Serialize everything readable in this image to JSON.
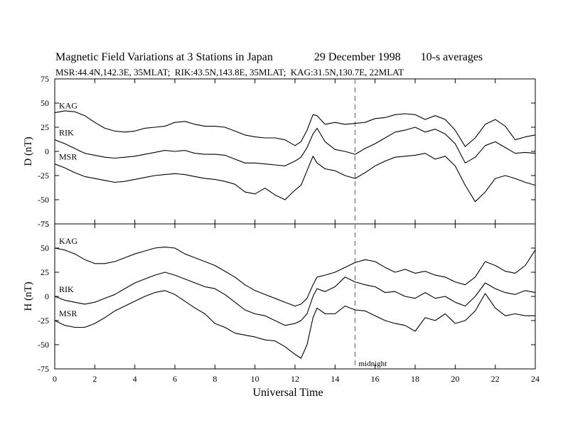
{
  "header": {
    "title": "Magnetic Field Variations at 3 Stations in Japan",
    "date": "29 December 1998",
    "averaging": "10-s averages",
    "stations_line": "MSR:44.4N,142.3E, 35MLAT;  RIK:43.5N,143.8E, 35MLAT;  KAG:31.5N,130.7E, 22MLAT"
  },
  "chart_data": [
    {
      "type": "line",
      "panel": "D",
      "ylabel": "D (nT)",
      "xlim": [
        0,
        24
      ],
      "ylim": [
        -75,
        75
      ],
      "yticks": [
        75,
        50,
        25,
        0,
        -25,
        -50,
        -75
      ],
      "series": [
        {
          "name": "KAG",
          "x": [
            0,
            0.5,
            1,
            1.5,
            2,
            2.5,
            3,
            3.5,
            4,
            4.5,
            5,
            5.5,
            6,
            6.5,
            7,
            7.5,
            8,
            8.5,
            9,
            9.5,
            10,
            10.5,
            11,
            11.5,
            12,
            12.3,
            12.6,
            12.9,
            13.1,
            13.5,
            14,
            14.5,
            15,
            15.5,
            16,
            16.5,
            17,
            17.5,
            18,
            18.5,
            19,
            19.5,
            20,
            20.5,
            21,
            21.5,
            22,
            22.5,
            23,
            23.5,
            24
          ],
          "y": [
            40,
            42,
            41,
            37,
            30,
            24,
            21,
            20,
            21,
            24,
            25,
            26,
            30,
            31,
            28,
            26,
            26,
            25,
            21,
            17,
            15,
            14,
            14,
            12,
            6,
            10,
            22,
            38,
            37,
            28,
            30,
            28,
            29,
            30,
            34,
            35,
            38,
            39,
            38,
            33,
            37,
            33,
            22,
            5,
            14,
            28,
            33,
            26,
            12,
            15,
            17
          ]
        },
        {
          "name": "RIK",
          "x": [
            0,
            0.5,
            1,
            1.5,
            2,
            2.5,
            3,
            3.5,
            4,
            4.5,
            5,
            5.5,
            6,
            6.5,
            7,
            7.5,
            8,
            8.5,
            9,
            9.5,
            10,
            10.5,
            11,
            11.5,
            12,
            12.3,
            12.6,
            12.9,
            13.1,
            13.5,
            14,
            14.5,
            15,
            15.5,
            16,
            16.5,
            17,
            17.5,
            18,
            18.5,
            19,
            19.5,
            20,
            20.5,
            21,
            21.5,
            22,
            22.5,
            23,
            23.5,
            24
          ],
          "y": [
            12,
            8,
            3,
            -2,
            -4,
            -6,
            -7,
            -6,
            -5,
            -3,
            -1,
            1,
            0,
            1,
            -2,
            -3,
            -3,
            -4,
            -8,
            -12,
            -12,
            -13,
            -14,
            -15,
            -10,
            -6,
            4,
            18,
            24,
            10,
            2,
            0,
            -3,
            3,
            8,
            14,
            20,
            22,
            25,
            20,
            23,
            18,
            8,
            -12,
            -6,
            6,
            10,
            4,
            -2,
            -1,
            -2
          ]
        },
        {
          "name": "MSR",
          "x": [
            0,
            0.5,
            1,
            1.5,
            2,
            2.5,
            3,
            3.5,
            4,
            4.5,
            5,
            5.5,
            6,
            6.5,
            7,
            7.5,
            8,
            8.5,
            9,
            9.5,
            10,
            10.5,
            11,
            11.5,
            12,
            12.3,
            12.6,
            12.9,
            13.1,
            13.5,
            14,
            14.5,
            15,
            15.5,
            16,
            16.5,
            17,
            17.5,
            18,
            18.5,
            19,
            19.5,
            20,
            20.5,
            21,
            21.5,
            22,
            22.5,
            23,
            23.5,
            24
          ],
          "y": [
            -13,
            -17,
            -22,
            -26,
            -28,
            -30,
            -32,
            -31,
            -29,
            -27,
            -25,
            -24,
            -23,
            -24,
            -26,
            -28,
            -29,
            -31,
            -34,
            -42,
            -44,
            -38,
            -45,
            -50,
            -40,
            -35,
            -20,
            -5,
            -12,
            -18,
            -20,
            -25,
            -28,
            -22,
            -15,
            -10,
            -6,
            -5,
            -4,
            -2,
            -8,
            -5,
            -15,
            -35,
            -52,
            -42,
            -28,
            -25,
            -28,
            -32,
            -35
          ]
        }
      ]
    },
    {
      "type": "line",
      "panel": "H",
      "ylabel": "H (nT)",
      "xlabel": "Universal Time",
      "xlim": [
        0,
        24
      ],
      "ylim": [
        -75,
        75
      ],
      "xticks": [
        0,
        2,
        4,
        6,
        8,
        10,
        12,
        14,
        16,
        18,
        20,
        22,
        24
      ],
      "yticks": [
        75,
        50,
        25,
        0,
        -25,
        -50,
        -75
      ],
      "annotation": {
        "x": 15,
        "label": "midnight"
      },
      "series": [
        {
          "name": "KAG",
          "x": [
            0,
            0.5,
            1,
            1.5,
            2,
            2.5,
            3,
            3.5,
            4,
            4.5,
            5,
            5.5,
            6,
            6.5,
            7,
            7.5,
            8,
            8.5,
            9,
            9.5,
            10,
            10.5,
            11,
            11.5,
            12,
            12.3,
            12.6,
            12.9,
            13.1,
            13.5,
            14,
            14.5,
            15,
            15.5,
            16,
            16.5,
            17,
            17.5,
            18,
            18.5,
            19,
            19.5,
            20,
            20.5,
            21,
            21.5,
            22,
            22.5,
            23,
            23.5,
            24
          ],
          "y": [
            50,
            48,
            44,
            38,
            34,
            34,
            36,
            40,
            44,
            47,
            50,
            51,
            50,
            44,
            40,
            36,
            32,
            26,
            20,
            12,
            6,
            2,
            -2,
            -6,
            -10,
            -8,
            -2,
            12,
            20,
            22,
            25,
            30,
            35,
            38,
            36,
            30,
            25,
            28,
            24,
            26,
            22,
            20,
            15,
            12,
            20,
            36,
            32,
            26,
            24,
            32,
            48
          ]
        },
        {
          "name": "RIK",
          "x": [
            0,
            0.5,
            1,
            1.5,
            2,
            2.5,
            3,
            3.5,
            4,
            4.5,
            5,
            5.5,
            6,
            6.5,
            7,
            7.5,
            8,
            8.5,
            9,
            9.5,
            10,
            10.5,
            11,
            11.5,
            12,
            12.3,
            12.6,
            12.9,
            13.1,
            13.5,
            14,
            14.5,
            15,
            15.5,
            16,
            16.5,
            17,
            17.5,
            18,
            18.5,
            19,
            19.5,
            20,
            20.5,
            21,
            21.5,
            22,
            22.5,
            23,
            23.5,
            24
          ],
          "y": [
            0,
            -4,
            -6,
            -8,
            -6,
            -2,
            2,
            8,
            14,
            18,
            22,
            25,
            22,
            18,
            14,
            10,
            8,
            2,
            -6,
            -14,
            -18,
            -20,
            -25,
            -30,
            -28,
            -25,
            -18,
            0,
            8,
            5,
            10,
            20,
            15,
            12,
            10,
            4,
            5,
            0,
            -2,
            4,
            -2,
            0,
            -6,
            -10,
            0,
            14,
            8,
            4,
            2,
            6,
            4
          ]
        },
        {
          "name": "MSR",
          "x": [
            0,
            0.5,
            1,
            1.5,
            2,
            2.5,
            3,
            3.5,
            4,
            4.5,
            5,
            5.5,
            6,
            6.5,
            7,
            7.5,
            8,
            8.5,
            9,
            9.5,
            10,
            10.5,
            11,
            11.5,
            12,
            12.3,
            12.6,
            12.9,
            13.1,
            13.5,
            14,
            14.5,
            15,
            15.5,
            16,
            16.5,
            17,
            17.5,
            18,
            18.5,
            19,
            19.5,
            20,
            20.5,
            21,
            21.5,
            22,
            22.5,
            23,
            23.5,
            24
          ],
          "y": [
            -25,
            -30,
            -32,
            -32,
            -28,
            -22,
            -15,
            -10,
            -5,
            0,
            4,
            6,
            2,
            -5,
            -12,
            -18,
            -28,
            -32,
            -38,
            -40,
            -42,
            -45,
            -46,
            -52,
            -60,
            -64,
            -50,
            -22,
            -12,
            -18,
            -18,
            -10,
            -14,
            -15,
            -20,
            -25,
            -28,
            -30,
            -36,
            -22,
            -25,
            -18,
            -28,
            -25,
            -15,
            3,
            -12,
            -20,
            -18,
            -20,
            -20
          ]
        }
      ]
    }
  ]
}
